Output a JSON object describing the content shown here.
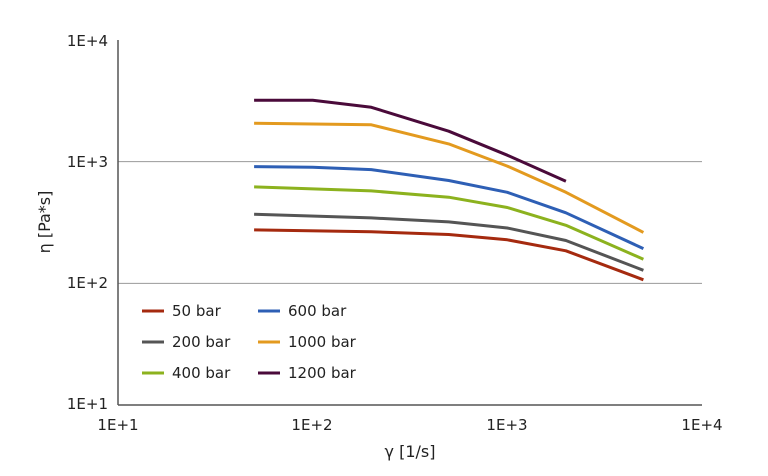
{
  "chart_data": {
    "type": "line",
    "title": "",
    "xlabel": "γ [1/s]",
    "ylabel": "η [Pa*s]",
    "x_scale": "log",
    "y_scale": "log",
    "xlim": [
      10,
      10000
    ],
    "ylim": [
      10,
      10000
    ],
    "x_ticks": [
      "1E+1",
      "1E+2",
      "1E+3",
      "1E+4"
    ],
    "y_ticks": [
      "1E+1",
      "1E+2",
      "1E+3",
      "1E+4"
    ],
    "grid": "horizontal major lines",
    "legend_position": "bottom-left inside plot",
    "series": [
      {
        "name": "50 bar",
        "color": "#a52a0f",
        "x": [
          50,
          200,
          500,
          1000,
          2000,
          5000
        ],
        "y": [
          275,
          265,
          252,
          228,
          185,
          107
        ]
      },
      {
        "name": "200 bar",
        "color": "#555555",
        "x": [
          50,
          200,
          500,
          1000,
          2000,
          5000
        ],
        "y": [
          370,
          345,
          320,
          285,
          225,
          128
        ]
      },
      {
        "name": "400 bar",
        "color": "#8cb21e",
        "x": [
          50,
          200,
          500,
          1000,
          2000,
          5000
        ],
        "y": [
          620,
          575,
          510,
          420,
          300,
          158
        ]
      },
      {
        "name": "600 bar",
        "color": "#2e5fb5",
        "x": [
          50,
          100,
          200,
          500,
          1000,
          2000,
          5000
        ],
        "y": [
          910,
          900,
          860,
          700,
          560,
          380,
          193
        ]
      },
      {
        "name": "1000 bar",
        "color": "#e39a1f",
        "x": [
          50,
          200,
          500,
          1000,
          2000,
          5000
        ],
        "y": [
          2070,
          2010,
          1400,
          920,
          560,
          262
        ]
      },
      {
        "name": "1200 bar",
        "color": "#4a0a3a",
        "x": [
          50,
          100,
          200,
          500,
          1000,
          2000
        ],
        "y": [
          3200,
          3200,
          2800,
          1780,
          1130,
          690
        ]
      }
    ]
  }
}
